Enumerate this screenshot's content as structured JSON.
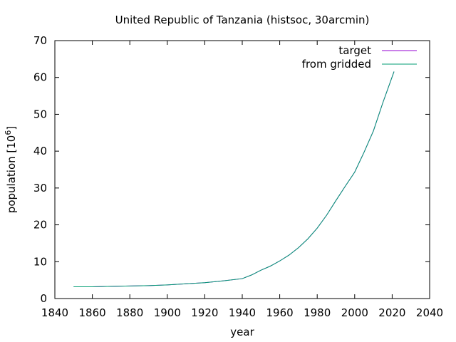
{
  "chart_data": {
    "type": "line",
    "title": "United Republic of Tanzania (histsoc, 30arcmin)",
    "xlabel": "year",
    "ylabel": "population [10",
    "ylabel_exponent": "6",
    "ylabel_close": "]",
    "xlim": [
      1840,
      2040
    ],
    "ylim": [
      0,
      70
    ],
    "xticks": [
      1840,
      1860,
      1880,
      1900,
      1920,
      1940,
      1960,
      1980,
      2000,
      2020,
      2040
    ],
    "yticks": [
      0,
      10,
      20,
      30,
      40,
      50,
      60,
      70
    ],
    "grid": false,
    "legend_position": "top-right",
    "series": [
      {
        "name": "target",
        "color": "#9400d3",
        "x": [
          1850,
          1860,
          1870,
          1880,
          1890,
          1900,
          1910,
          1920,
          1930,
          1940,
          1945,
          1950,
          1955,
          1960,
          1965,
          1970,
          1975,
          1980,
          1985,
          1990,
          1995,
          2000,
          2005,
          2010,
          2015,
          2021
        ],
        "y": [
          3.2,
          3.2,
          3.3,
          3.4,
          3.5,
          3.7,
          4.0,
          4.3,
          4.8,
          5.4,
          6.4,
          7.7,
          8.8,
          10.2,
          11.8,
          13.8,
          16.2,
          19.1,
          22.6,
          26.6,
          30.5,
          34.3,
          39.7,
          45.5,
          53.1,
          61.6
        ]
      },
      {
        "name": "from gridded",
        "color": "#009e73",
        "x": [
          1850,
          1860,
          1870,
          1880,
          1890,
          1900,
          1910,
          1920,
          1930,
          1940,
          1945,
          1950,
          1955,
          1960,
          1965,
          1970,
          1975,
          1980,
          1985,
          1990,
          1995,
          2000,
          2005,
          2010,
          2015,
          2021
        ],
        "y": [
          3.2,
          3.2,
          3.3,
          3.4,
          3.5,
          3.7,
          4.0,
          4.3,
          4.8,
          5.4,
          6.4,
          7.7,
          8.8,
          10.2,
          11.8,
          13.8,
          16.2,
          19.1,
          22.6,
          26.6,
          30.5,
          34.3,
          39.7,
          45.5,
          53.1,
          61.6
        ]
      }
    ]
  }
}
